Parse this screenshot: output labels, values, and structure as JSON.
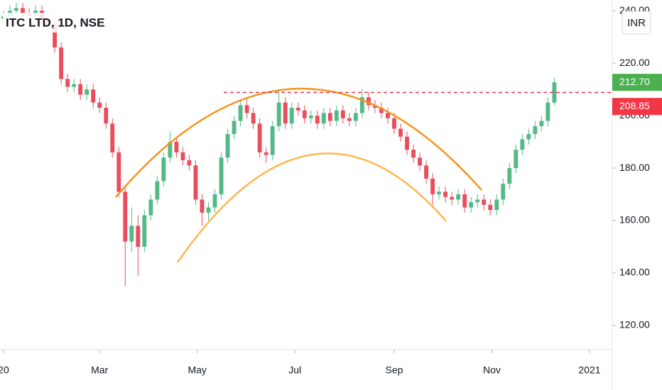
{
  "chart_data": {
    "type": "candlestick",
    "title": "ITC LTD, 1D, NSE",
    "currency_button": "INR",
    "x": [
      0,
      4,
      8,
      12,
      16,
      20,
      24,
      28,
      32,
      36,
      40,
      44,
      48,
      52,
      56,
      60,
      64,
      68,
      72,
      76,
      80,
      84,
      88,
      92,
      96,
      100,
      104,
      108,
      112,
      116,
      120,
      124,
      128,
      132,
      136,
      140,
      144,
      148,
      152,
      156,
      160,
      164,
      168,
      172,
      176,
      180,
      184,
      188,
      192,
      196,
      200,
      204,
      208,
      212,
      216,
      220,
      224,
      228,
      232,
      236,
      240,
      244,
      248,
      252,
      256,
      260,
      264,
      268,
      272,
      276,
      280,
      284,
      288,
      292,
      296,
      300,
      304,
      308,
      312,
      316,
      320,
      324,
      328,
      332,
      336,
      340,
      344
    ],
    "open": [
      237,
      238,
      240,
      241,
      239,
      238,
      240,
      237,
      235,
      226,
      214,
      211,
      212,
      208,
      210,
      205,
      203,
      197,
      186,
      171,
      152,
      158,
      150,
      162,
      168,
      175,
      184,
      190,
      186,
      183,
      181,
      168,
      163,
      165,
      170,
      184,
      193,
      198,
      204,
      201,
      197,
      186,
      185,
      196,
      205,
      197,
      203,
      202,
      199,
      200,
      197,
      201,
      198,
      202,
      199,
      198,
      201,
      207,
      204,
      203,
      201,
      199,
      195,
      192,
      187,
      184,
      181,
      176,
      170,
      171,
      169,
      168,
      170,
      165,
      167,
      168,
      166,
      164,
      168,
      174,
      180,
      187,
      191,
      193,
      196,
      198,
      205
    ],
    "high": [
      240,
      242,
      243,
      243,
      241,
      242,
      242,
      239,
      237,
      228,
      216,
      214,
      214,
      212,
      212,
      207,
      205,
      199,
      188,
      173,
      165,
      162,
      164,
      170,
      177,
      186,
      194,
      192,
      188,
      185,
      183,
      170,
      167,
      172,
      186,
      195,
      200,
      206,
      207,
      203,
      199,
      188,
      198,
      210,
      207,
      205,
      205,
      204,
      202,
      202,
      203,
      203,
      204,
      204,
      201,
      203,
      210,
      209,
      206,
      205,
      203,
      201,
      197,
      194,
      189,
      186,
      183,
      178,
      173,
      173,
      171,
      172,
      172,
      169,
      170,
      170,
      168,
      170,
      176,
      182,
      189,
      193,
      195,
      198,
      200,
      207,
      214.5
    ],
    "low": [
      235,
      236,
      238,
      237,
      236,
      236,
      235,
      233,
      224,
      212,
      209,
      209,
      206,
      206,
      203,
      201,
      195,
      184,
      169,
      135,
      148,
      139,
      148,
      160,
      166,
      173,
      182,
      184,
      181,
      179,
      166,
      158,
      160,
      163,
      168,
      182,
      191,
      196,
      199,
      195,
      184,
      182,
      183,
      194,
      195,
      195,
      200,
      197,
      197,
      195,
      195,
      196,
      196,
      197,
      196,
      196,
      199,
      202,
      201,
      199,
      197,
      193,
      190,
      185,
      182,
      179,
      174,
      166,
      168,
      167,
      166,
      166,
      163,
      163,
      165,
      164,
      162,
      162,
      166,
      172,
      178,
      185,
      189,
      191,
      194,
      196,
      204
    ],
    "close": [
      238,
      240,
      241,
      239,
      238,
      240,
      237,
      235,
      226,
      214,
      211,
      212,
      208,
      210,
      205,
      203,
      197,
      186,
      171,
      152,
      158,
      150,
      162,
      168,
      175,
      184,
      190,
      186,
      183,
      181,
      168,
      163,
      165,
      170,
      184,
      193,
      198,
      204,
      201,
      197,
      186,
      185,
      196,
      205,
      197,
      203,
      202,
      199,
      200,
      197,
      201,
      198,
      202,
      199,
      198,
      201,
      207,
      204,
      203,
      201,
      199,
      195,
      192,
      187,
      184,
      181,
      176,
      170,
      171,
      169,
      168,
      170,
      165,
      167,
      168,
      166,
      164,
      168,
      174,
      180,
      187,
      191,
      193,
      196,
      198,
      205,
      212.7
    ],
    "up_color": "#53b987",
    "down_color": "#eb4d5c",
    "xlim": [
      -2.2,
      380.2
    ],
    "xticks": [
      {
        "value": 0,
        "label": "20"
      },
      {
        "value": 60,
        "label": "Mar"
      },
      {
        "value": 121,
        "label": "May"
      },
      {
        "value": 182,
        "label": "Jul"
      },
      {
        "value": 244,
        "label": "Sep"
      },
      {
        "value": 305,
        "label": "Nov"
      },
      {
        "value": 366,
        "label": "2021"
      }
    ],
    "ylim": [
      110.8,
      244.1
    ],
    "yticks": [
      {
        "value": 120,
        "label": "120.00"
      },
      {
        "value": 140,
        "label": "140.00"
      },
      {
        "value": 160,
        "label": "160.00"
      },
      {
        "value": 180,
        "label": "180.00"
      },
      {
        "value": 200,
        "label": "200.00"
      },
      {
        "value": 220,
        "label": "220.00"
      },
      {
        "value": 240,
        "label": "240.00"
      }
    ],
    "last_price": {
      "value": 212.7,
      "label": "212.70",
      "color": "#4caf50"
    },
    "resistance": {
      "value": 208.85,
      "label": "208.85",
      "color": "#f23645"
    }
  }
}
